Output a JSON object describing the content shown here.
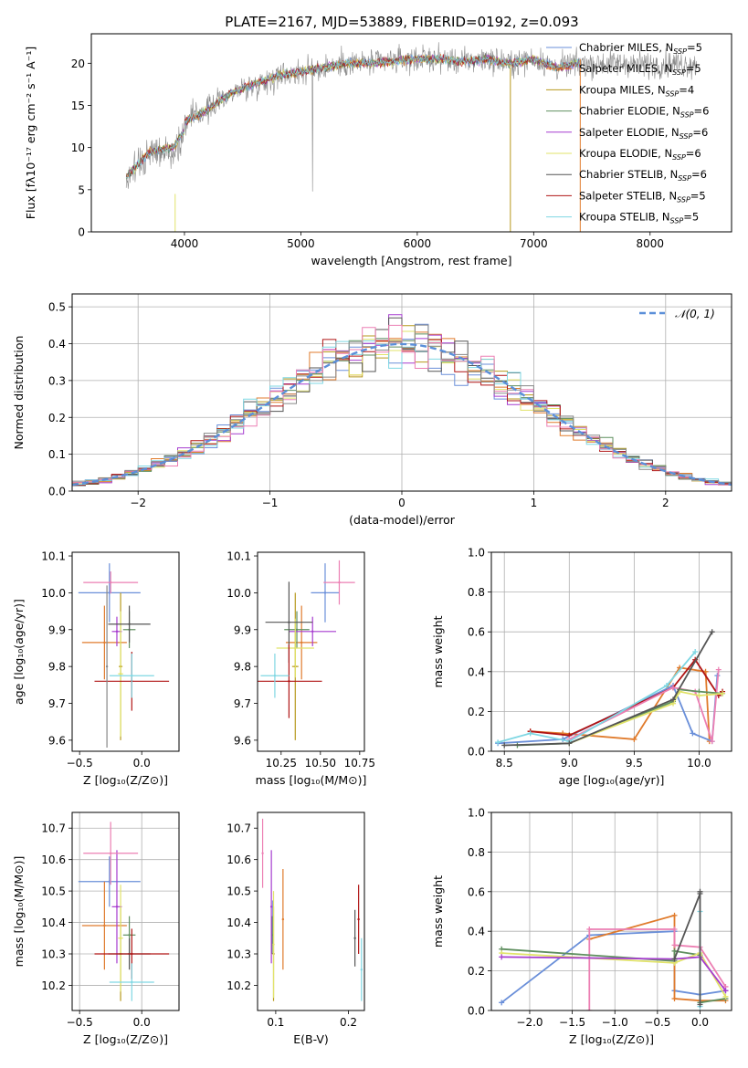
{
  "figure": {
    "title": "PLATE=2167, MJD=53889, FIBERID=0192, z=0.093"
  },
  "colors": {
    "blue": "#6a8fd9",
    "orange": "#e07b2c",
    "olive": "#b7991d",
    "green": "#5f8f5f",
    "purple": "#a63ccf",
    "yellow": "#e1e36a",
    "dgray": "#555555",
    "red": "#b01414",
    "cyan": "#7fd7e3",
    "pink": "#ec7fb3",
    "gray": "#888888",
    "spec": "#8a8a8a",
    "normal": "#5b8fd9"
  },
  "chart_data": [
    {
      "id": "spectrum",
      "type": "line",
      "xlabel": "wavelength [Angstrom, rest frame]",
      "ylabel": "Flux [fλ10⁻¹⁷ erg cm⁻² s⁻¹ A⁻¹]",
      "xlim": [
        3200,
        8700
      ],
      "ylim": [
        0,
        23.5
      ],
      "xticks": [
        4000,
        5000,
        6000,
        7000,
        8000
      ],
      "yticks": [
        0,
        5,
        10,
        15,
        20
      ],
      "grid": false,
      "legend": "right",
      "observed_envelope": {
        "x": [
          3500,
          3700,
          3900,
          4000,
          4200,
          4400,
          4600,
          4800,
          5000,
          5200,
          5400,
          5600,
          5800,
          6000,
          6200,
          6400,
          6600,
          6800,
          7000,
          7200,
          7400,
          7600,
          7800,
          8000,
          8200,
          8400
        ],
        "y": [
          7.5,
          10.5,
          11.0,
          13.0,
          14.5,
          16.5,
          17.5,
          18.5,
          19.0,
          19.5,
          20.0,
          20.0,
          20.3,
          20.5,
          20.5,
          20.2,
          20.5,
          20.0,
          20.5,
          19.5,
          20.0,
          20.0,
          20.0,
          19.8,
          20.0,
          19.8
        ]
      },
      "model_xrange": [
        3500,
        7400
      ],
      "series": [
        {
          "name": "Chabrier MILES, N_SSP=5",
          "color": "blue"
        },
        {
          "name": "Salpeter MILES, N_SSP=5",
          "color": "orange"
        },
        {
          "name": "Kroupa MILES, N_SSP=4",
          "color": "olive"
        },
        {
          "name": "Chabrier ELODIE, N_SSP=6",
          "color": "green"
        },
        {
          "name": "Salpeter ELODIE, N_SSP=6",
          "color": "purple"
        },
        {
          "name": "Kroupa ELODIE, N_SSP=6",
          "color": "yellow"
        },
        {
          "name": "Chabrier STELIB, N_SSP=6",
          "color": "dgray"
        },
        {
          "name": "Salpeter STELIB, N_SSP=5",
          "color": "red"
        },
        {
          "name": "Kroupa STELIB, N_SSP=5",
          "color": "cyan"
        }
      ],
      "legend_labels": [
        {
          "pre": "Chabrier MILES, N",
          "sub": "SSP",
          "post": "=5"
        },
        {
          "pre": "Salpeter MILES, N",
          "sub": "SSP",
          "post": "=5"
        },
        {
          "pre": "Kroupa MILES, N",
          "sub": "SSP",
          "post": "=4"
        },
        {
          "pre": "Chabrier ELODIE, N",
          "sub": "SSP",
          "post": "=6"
        },
        {
          "pre": "Salpeter ELODIE, N",
          "sub": "SSP",
          "post": "=6"
        },
        {
          "pre": "Kroupa ELODIE, N",
          "sub": "SSP",
          "post": "=6"
        },
        {
          "pre": "Chabrier STELIB, N",
          "sub": "SSP",
          "post": "=6"
        },
        {
          "pre": "Salpeter STELIB, N",
          "sub": "SSP",
          "post": "=5"
        },
        {
          "pre": "Kroupa STELIB, N",
          "sub": "SSP",
          "post": "=5"
        }
      ]
    },
    {
      "id": "residuals",
      "type": "area",
      "xlabel": "(data-model)/error",
      "ylabel": "Normed distribution",
      "xlim": [
        -2.5,
        2.5
      ],
      "ylim": [
        0,
        0.535
      ],
      "xticks": [
        -2,
        -1,
        0,
        1,
        2
      ],
      "xticklabels": [
        "−2",
        "−1",
        "0",
        "1",
        "2"
      ],
      "yticks": [
        0,
        0.1,
        0.2,
        0.3,
        0.4,
        0.5
      ],
      "yticklabels": [
        "0.0",
        "0.1",
        "0.2",
        "0.3",
        "0.4",
        "0.5"
      ],
      "grid": true,
      "legend": "top-right",
      "legend_label": "𝒩(0, 1)",
      "bin_width": 0.1,
      "normal_curve": {
        "mean": 0,
        "sigma": 1
      }
    },
    {
      "id": "age_vs_Z",
      "type": "scatter",
      "xlabel": "Z [log₁₀(Z/Z⊙)]",
      "ylabel": "age  [log₁₀(age/yr)]",
      "xlim": [
        -0.56,
        0.3
      ],
      "ylim": [
        9.57,
        10.11
      ],
      "xticks": [
        -0.5,
        0.0
      ],
      "xticklabels": [
        "−0.5",
        "0.0"
      ],
      "yticks": [
        9.6,
        9.7,
        9.8,
        9.9,
        10.0,
        10.1
      ],
      "yticklabels": [
        "9.6",
        "9.7",
        "9.8",
        "9.9",
        "10.0",
        "10.1"
      ],
      "grid": false,
      "points": [
        {
          "x": -0.26,
          "y": 10.0,
          "xerr": 0.25,
          "yerr": 0.08,
          "color": "blue"
        },
        {
          "x": -0.3,
          "y": 9.865,
          "xerr": 0.18,
          "yerr": 0.1,
          "color": "orange"
        },
        {
          "x": -0.17,
          "y": 9.8,
          "xerr": 0.015,
          "yerr": 0.2,
          "color": "olive"
        },
        {
          "x": -0.1,
          "y": 9.9,
          "xerr": 0.05,
          "yerr": 0.05,
          "color": "green"
        },
        {
          "x": -0.2,
          "y": 9.895,
          "xerr": 0.04,
          "yerr": 0.04,
          "color": "purple"
        },
        {
          "x": -0.17,
          "y": 9.78,
          "xerr": 0.02,
          "yerr": 0.17,
          "color": "yellow"
        },
        {
          "x": -0.1,
          "y": 9.915,
          "xerr": 0.17,
          "yerr": 0.05,
          "color": "dgray"
        },
        {
          "x": -0.08,
          "y": 9.76,
          "xerr": 0.3,
          "yerr": 0.08,
          "color": "red"
        },
        {
          "x": -0.08,
          "y": 9.775,
          "xerr": 0.18,
          "yerr": 0.06,
          "color": "cyan"
        },
        {
          "x": -0.25,
          "y": 10.028,
          "xerr": 0.22,
          "yerr": 0.03,
          "color": "pink"
        },
        {
          "x": -0.28,
          "y": 9.8,
          "xerr": 0.0,
          "yerr": 0.22,
          "color": "gray"
        }
      ]
    },
    {
      "id": "age_vs_mass",
      "type": "scatter",
      "xlabel": "mass [log₁₀(M/M⊙)]",
      "ylabel": "",
      "xlim": [
        10.1,
        10.78
      ],
      "ylim": [
        9.57,
        10.11
      ],
      "xticks": [
        10.25,
        10.5,
        10.75
      ],
      "xticklabels": [
        "10.25",
        "10.50",
        "10.75"
      ],
      "yticks": [
        9.6,
        9.7,
        9.8,
        9.9,
        10.0,
        10.1
      ],
      "yticklabels": [
        "9.6",
        "9.7",
        "9.8",
        "9.9",
        "10.0",
        "10.1"
      ],
      "grid": false,
      "points": [
        {
          "x": 10.53,
          "y": 10.0,
          "xerr": 0.09,
          "yerr": 0.08,
          "color": "blue"
        },
        {
          "x": 10.38,
          "y": 9.865,
          "xerr": 0.1,
          "yerr": 0.1,
          "color": "orange"
        },
        {
          "x": 10.34,
          "y": 9.8,
          "xerr": 0.02,
          "yerr": 0.2,
          "color": "olive"
        },
        {
          "x": 10.35,
          "y": 9.9,
          "xerr": 0.08,
          "yerr": 0.05,
          "color": "green"
        },
        {
          "x": 10.45,
          "y": 9.895,
          "xerr": 0.15,
          "yerr": 0.04,
          "color": "purple"
        },
        {
          "x": 10.34,
          "y": 9.85,
          "xerr": 0.12,
          "yerr": 0.08,
          "color": "yellow"
        },
        {
          "x": 10.3,
          "y": 9.92,
          "xerr": 0.15,
          "yerr": 0.11,
          "color": "dgray"
        },
        {
          "x": 10.3,
          "y": 9.76,
          "xerr": 0.21,
          "yerr": 0.1,
          "color": "red"
        },
        {
          "x": 10.21,
          "y": 9.775,
          "xerr": 0.09,
          "yerr": 0.06,
          "color": "cyan"
        },
        {
          "x": 10.62,
          "y": 10.028,
          "xerr": 0.1,
          "yerr": 0.06,
          "color": "pink"
        }
      ]
    },
    {
      "id": "mass_weight_vs_age",
      "type": "line",
      "xlabel": "age  [log₁₀(age/yr)]",
      "ylabel": "mass weight",
      "xlim": [
        8.4,
        10.25
      ],
      "ylim": [
        0,
        1.0
      ],
      "xticks": [
        8.5,
        9.0,
        9.5,
        10.0
      ],
      "xticklabels": [
        "8.5",
        "9.0",
        "9.5",
        "10.0"
      ],
      "yticks": [
        0,
        0.2,
        0.4,
        0.6,
        0.8,
        1.0
      ],
      "yticklabels": [
        "0.0",
        "0.2",
        "0.4",
        "0.6",
        "0.8",
        "1.0"
      ],
      "grid": true,
      "series": [
        {
          "color": "orange",
          "x": [
            8.7,
            8.95,
            9.5,
            9.85,
            10.05,
            10.08
          ],
          "y": [
            0.1,
            0.09,
            0.06,
            0.42,
            0.4,
            0.05
          ]
        },
        {
          "color": "blue",
          "x": [
            8.45,
            8.95,
            9.8,
            9.95,
            10.1,
            10.14
          ],
          "y": [
            0.04,
            0.06,
            0.33,
            0.09,
            0.05,
            0.38
          ]
        },
        {
          "color": "red",
          "x": [
            8.7,
            9.0,
            9.8,
            9.97,
            10.15,
            10.18
          ],
          "y": [
            0.1,
            0.08,
            0.32,
            0.46,
            0.28,
            0.3
          ]
        },
        {
          "color": "pink",
          "x": [
            9.0,
            9.8,
            9.97,
            10.1,
            10.15
          ],
          "y": [
            0.06,
            0.32,
            0.3,
            0.05,
            0.41
          ]
        },
        {
          "color": "green",
          "x": [
            8.6,
            9.0,
            9.8,
            9.85,
            10.0,
            10.18
          ],
          "y": [
            0.03,
            0.04,
            0.25,
            0.31,
            0.3,
            0.29
          ]
        },
        {
          "color": "yellow",
          "x": [
            9.0,
            9.8,
            9.85,
            10.0,
            10.18
          ],
          "y": [
            0.04,
            0.24,
            0.3,
            0.28,
            0.29
          ]
        },
        {
          "color": "cyan",
          "x": [
            8.45,
            8.7,
            9.0,
            9.75,
            9.97
          ],
          "y": [
            0.045,
            0.09,
            0.05,
            0.33,
            0.5
          ]
        },
        {
          "color": "dgray",
          "x": [
            8.5,
            9.0,
            9.8,
            10.1
          ],
          "y": [
            0.03,
            0.04,
            0.26,
            0.6
          ]
        }
      ]
    },
    {
      "id": "mass_vs_Z",
      "type": "scatter",
      "xlabel": "Z [log₁₀(Z/Z⊙)]",
      "ylabel": "mass [log₁₀(M/M⊙)]",
      "xlim": [
        -0.56,
        0.3
      ],
      "ylim": [
        10.12,
        10.75
      ],
      "xticks": [
        -0.5,
        0.0
      ],
      "xticklabels": [
        "−0.5",
        "0.0"
      ],
      "yticks": [
        10.2,
        10.3,
        10.4,
        10.5,
        10.6,
        10.7
      ],
      "yticklabels": [
        "10.2",
        "10.3",
        "10.4",
        "10.5",
        "10.6",
        "10.7"
      ],
      "grid": true,
      "points": [
        {
          "x": -0.26,
          "y": 10.53,
          "xerr": 0.25,
          "yerr": 0.08,
          "color": "blue"
        },
        {
          "x": -0.3,
          "y": 10.39,
          "xerr": 0.18,
          "yerr": 0.14,
          "color": "orange"
        },
        {
          "x": -0.17,
          "y": 10.3,
          "xerr": 0.015,
          "yerr": 0.15,
          "color": "olive"
        },
        {
          "x": -0.1,
          "y": 10.36,
          "xerr": 0.05,
          "yerr": 0.06,
          "color": "green"
        },
        {
          "x": -0.2,
          "y": 10.45,
          "xerr": 0.04,
          "yerr": 0.18,
          "color": "purple"
        },
        {
          "x": -0.17,
          "y": 10.35,
          "xerr": 0.02,
          "yerr": 0.17,
          "color": "yellow"
        },
        {
          "x": -0.1,
          "y": 10.3,
          "xerr": 0.17,
          "yerr": 0.05,
          "color": "dgray"
        },
        {
          "x": -0.08,
          "y": 10.3,
          "xerr": 0.3,
          "yerr": 0.08,
          "color": "red"
        },
        {
          "x": -0.08,
          "y": 10.21,
          "xerr": 0.18,
          "yerr": 0.06,
          "color": "cyan"
        },
        {
          "x": -0.25,
          "y": 10.62,
          "xerr": 0.22,
          "yerr": 0.1,
          "color": "pink"
        }
      ]
    },
    {
      "id": "mass_vs_ebv",
      "type": "scatter",
      "xlabel": "E(B-V)",
      "ylabel": "",
      "xlim": [
        0.075,
        0.222
      ],
      "ylim": [
        10.12,
        10.75
      ],
      "xticks": [
        0.1,
        0.2
      ],
      "xticklabels": [
        "0.1",
        "0.2"
      ],
      "yticks": [
        10.2,
        10.3,
        10.4,
        10.5,
        10.6,
        10.7
      ],
      "yticklabels": [
        "10.2",
        "10.3",
        "10.4",
        "10.5",
        "10.6",
        "10.7"
      ],
      "grid": false,
      "points": [
        {
          "x": 0.096,
          "y": 10.4,
          "xerr": 0.0,
          "yerr": 0.07,
          "color": "blue"
        },
        {
          "x": 0.11,
          "y": 10.41,
          "xerr": 0.0,
          "yerr": 0.16,
          "color": "orange"
        },
        {
          "x": 0.097,
          "y": 10.3,
          "xerr": 0.0,
          "yerr": 0.15,
          "color": "olive"
        },
        {
          "x": 0.095,
          "y": 10.36,
          "xerr": 0.0,
          "yerr": 0.06,
          "color": "green"
        },
        {
          "x": 0.094,
          "y": 10.45,
          "xerr": 0.0,
          "yerr": 0.18,
          "color": "purple"
        },
        {
          "x": 0.097,
          "y": 10.33,
          "xerr": 0.0,
          "yerr": 0.17,
          "color": "yellow"
        },
        {
          "x": 0.209,
          "y": 10.35,
          "xerr": 0.0,
          "yerr": 0.09,
          "color": "dgray"
        },
        {
          "x": 0.214,
          "y": 10.41,
          "xerr": 0.0,
          "yerr": 0.11,
          "color": "red"
        },
        {
          "x": 0.218,
          "y": 10.25,
          "xerr": 0.0,
          "yerr": 0.1,
          "color": "cyan"
        },
        {
          "x": 0.082,
          "y": 10.62,
          "xerr": 0.0,
          "yerr": 0.11,
          "color": "pink"
        }
      ]
    },
    {
      "id": "mass_weight_vs_Z",
      "type": "line",
      "xlabel": "Z [log₁₀(Z/Z⊙)]",
      "ylabel": "mass weight",
      "xlim": [
        -2.45,
        0.37
      ],
      "ylim": [
        0,
        1.0
      ],
      "xticks": [
        -2.0,
        -1.5,
        -1.0,
        -0.5,
        0.0
      ],
      "xticklabels": [
        "−2.0",
        "−1.5",
        "−1.0",
        "−0.5",
        "0.0"
      ],
      "yticks": [
        0,
        0.2,
        0.4,
        0.6,
        0.8,
        1.0
      ],
      "yticklabels": [
        "0.0",
        "0.2",
        "0.4",
        "0.6",
        "0.8",
        "1.0"
      ],
      "grid": true,
      "series": [
        {
          "color": "blue",
          "x": [
            -2.33,
            -1.3,
            -0.3,
            -0.3,
            0.0,
            0.3
          ],
          "y": [
            0.04,
            0.38,
            0.4,
            0.1,
            0.08,
            0.1
          ]
        },
        {
          "color": "orange",
          "x": [
            -1.3,
            -0.3,
            -0.3,
            0.0,
            0.3
          ],
          "y": [
            0.36,
            0.48,
            0.06,
            0.05,
            0.05
          ]
        },
        {
          "color": "pink",
          "x": [
            -1.3,
            -1.3,
            -0.3,
            -0.3,
            0.0,
            0.3
          ],
          "y": [
            0.0,
            0.41,
            0.41,
            0.33,
            0.32,
            0.12
          ]
        },
        {
          "color": "green",
          "x": [
            -2.33,
            -0.3,
            -0.3,
            0.0,
            0.0,
            0.3
          ],
          "y": [
            0.31,
            0.25,
            0.3,
            0.28,
            0.04,
            0.06
          ]
        },
        {
          "color": "yellow",
          "x": [
            -2.33,
            -0.3,
            0.0,
            0.3
          ],
          "y": [
            0.29,
            0.24,
            0.29,
            0.07
          ]
        },
        {
          "color": "purple",
          "x": [
            -2.33,
            -0.3,
            0.0,
            0.3
          ],
          "y": [
            0.27,
            0.26,
            0.27,
            0.1
          ]
        },
        {
          "color": "cyan",
          "x": [
            0.0,
            0.0
          ],
          "y": [
            0.5,
            0.02
          ]
        },
        {
          "color": "dgray",
          "x": [
            -0.3,
            0.0,
            0.0,
            0.0
          ],
          "y": [
            0.26,
            0.59,
            0.03,
            0.6
          ]
        }
      ]
    }
  ]
}
